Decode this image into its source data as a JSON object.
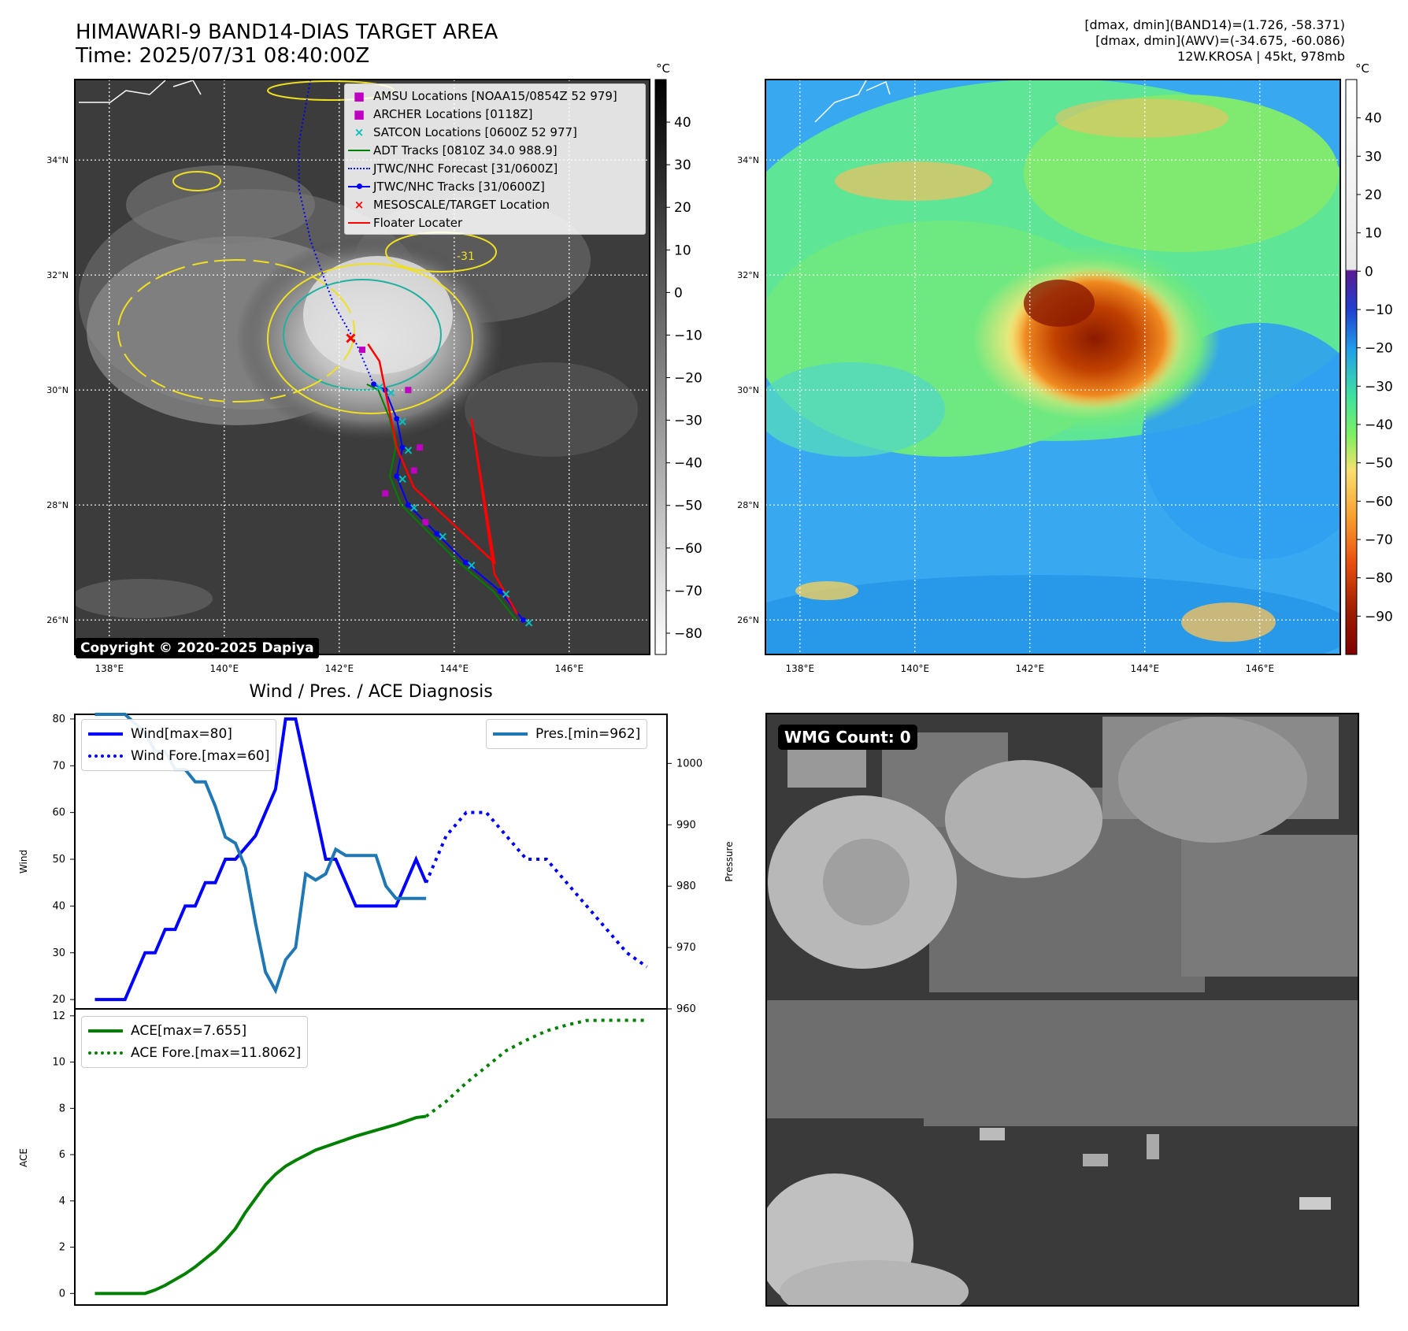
{
  "header": {
    "title_line1": "HIMAWARI-9 BAND14-DIAS TARGET AREA",
    "title_line2": "Time: 2025/07/31 08:40:00Z",
    "info_line1": "[dmax, dmin](BAND14)=(1.726, -58.371)",
    "info_line2": "[dmax, dmin](AWV)=(-34.675, -60.086)",
    "info_line3": "12W.KROSA | 45kt, 978mb"
  },
  "map": {
    "lat_labels": [
      "34°N",
      "32°N",
      "30°N",
      "28°N",
      "26°N"
    ],
    "lat_values": [
      34,
      32,
      30,
      28,
      26
    ],
    "lon_labels": [
      "138°E",
      "140°E",
      "142°E",
      "144°E",
      "146°E"
    ],
    "lon_values": [
      138,
      140,
      142,
      144,
      146
    ],
    "lat_range": [
      25.4,
      35.4
    ],
    "lon_range": [
      137.4,
      147.4
    ],
    "copyright": "Copyright © 2020-2025 Dapiya",
    "legend": [
      {
        "label": "AMSU Locations [NOAA15/0854Z 52 979]",
        "symbol": "■",
        "color": "#c000c0"
      },
      {
        "label": "ARCHER Locations [0118Z]",
        "symbol": "■",
        "color": "#c000c0"
      },
      {
        "label": "SATCON Locations [0600Z 52 977]",
        "symbol": "×",
        "color": "#00c0c0"
      },
      {
        "label": "ADT Tracks [0810Z 34.0 988.9]",
        "symbol": "line",
        "color": "#008000"
      },
      {
        "label": "JTWC/NHC Forecast [31/0600Z]",
        "symbol": "dotted",
        "color": "#0000ff"
      },
      {
        "label": "JTWC/NHC Tracks [31/0600Z]",
        "symbol": "linedot",
        "color": "#0000ff"
      },
      {
        "label": "MESOSCALE/TARGET Location",
        "symbol": "×",
        "color": "#ff0000"
      },
      {
        "label": "Floater Locater",
        "symbol": "line",
        "color": "#ff0000"
      }
    ],
    "contour_label": "-31",
    "colorbar_left": {
      "unit": "°C",
      "ticks": [
        "40",
        "30",
        "20",
        "10",
        "0",
        "−10",
        "−20",
        "−30",
        "−40",
        "−50",
        "−60",
        "−70",
        "−80"
      ],
      "tick_values": [
        40,
        30,
        20,
        10,
        0,
        -10,
        -20,
        -30,
        -40,
        -50,
        -60,
        -70,
        -80
      ],
      "range": [
        -85,
        50
      ]
    },
    "colorbar_right": {
      "unit": "°C",
      "ticks": [
        "40",
        "30",
        "20",
        "10",
        "0",
        "−10",
        "−20",
        "−30",
        "−40",
        "−50",
        "−60",
        "−70",
        "−80",
        "−90"
      ],
      "tick_values": [
        40,
        30,
        20,
        10,
        0,
        -10,
        -20,
        -30,
        -40,
        -50,
        -60,
        -70,
        -80,
        -90
      ],
      "range": [
        -100,
        50
      ]
    },
    "jtwc_track": [
      [
        26,
        145.2
      ],
      [
        26.5,
        144.8
      ],
      [
        27,
        144.2
      ],
      [
        27.5,
        143.7
      ],
      [
        28,
        143.2
      ],
      [
        28.5,
        143
      ],
      [
        29,
        143.1
      ],
      [
        29.5,
        143
      ],
      [
        30,
        142.8
      ],
      [
        30.1,
        142.6
      ]
    ],
    "jtwc_forecast": [
      [
        30.1,
        142.6
      ],
      [
        30.8,
        142.3
      ],
      [
        31.5,
        141.9
      ],
      [
        32.6,
        141.5
      ],
      [
        33.5,
        141.3
      ],
      [
        34.3,
        141.3
      ],
      [
        35.4,
        141.5
      ]
    ],
    "colors": {
      "jtwc": "#0000ff",
      "adt": "#008000",
      "floater": "#ff0000",
      "amsu": "#c000c0",
      "satcon": "#00c0c0",
      "contour_yellow": "#f0e020",
      "contour_teal": "#20b0a0"
    }
  },
  "diagnosis": {
    "title": "Wind / Pres. / ACE Diagnosis",
    "wind_axis_label": "Wind",
    "pressure_axis_label": "Pressure",
    "ace_axis_label": "ACE",
    "wind_ticks": [
      "80",
      "70",
      "60",
      "50",
      "40",
      "30",
      "20"
    ],
    "pressure_ticks": [
      "1000",
      "990",
      "980",
      "970",
      "960"
    ],
    "ace_ticks": [
      "12",
      "10",
      "8",
      "6",
      "4",
      "2",
      "0"
    ],
    "legend_wind": "Wind[max=80]",
    "legend_wind_fore": "Wind Fore.[max=60]",
    "legend_pres": "Pres.[min=962]",
    "legend_ace": "ACE[max=7.655]",
    "legend_ace_fore": "ACE Fore.[max=11.8062]"
  },
  "chart_data": [
    {
      "type": "line",
      "title": "Wind / Pres. / ACE Diagnosis",
      "ylabel": "Wind",
      "ylim": [
        18,
        81
      ],
      "y2label": "Pressure",
      "y2lim": [
        960,
        1008
      ],
      "x": [
        0,
        1,
        2,
        3,
        4,
        5,
        6,
        7,
        8,
        9,
        10,
        11,
        12,
        13,
        14,
        15,
        16,
        17,
        18,
        19,
        20,
        21,
        22,
        23,
        24,
        25,
        26,
        27,
        28,
        29,
        30,
        31,
        32,
        33,
        34,
        35,
        36,
        37,
        38,
        39,
        40,
        41,
        42,
        43,
        44,
        45,
        46,
        47,
        48,
        49,
        50,
        51,
        52,
        53,
        54,
        55
      ],
      "xlim": [
        -2,
        57
      ],
      "series": [
        {
          "name": "Wind[max=80]",
          "color": "#0000ff",
          "style": "solid",
          "axis": "left",
          "x": [
            0,
            3,
            5,
            6,
            7,
            8,
            9,
            10,
            11,
            12,
            13,
            14,
            16,
            18,
            19,
            20,
            21,
            22,
            23,
            24,
            25,
            26,
            28,
            30,
            32,
            33
          ],
          "values": [
            20,
            20,
            30,
            30,
            35,
            35,
            40,
            40,
            45,
            45,
            50,
            50,
            55,
            65,
            80,
            80,
            70,
            60,
            50,
            50,
            45,
            40,
            40,
            40,
            50,
            45
          ]
        },
        {
          "name": "Wind Fore.[max=60]",
          "color": "#0000ff",
          "style": "dotted",
          "axis": "left",
          "x": [
            33,
            35,
            37,
            39,
            41,
            43,
            45,
            47,
            49,
            51,
            53,
            55
          ],
          "values": [
            45,
            55,
            60,
            60,
            55,
            50,
            50,
            45,
            40,
            35,
            30,
            27
          ]
        },
        {
          "name": "Pres.[min=962]",
          "color": "#1f77b4",
          "style": "solid",
          "axis": "right",
          "x": [
            0,
            3,
            5,
            6,
            7,
            8,
            9,
            10,
            11,
            12,
            13,
            14,
            15,
            16,
            17,
            18,
            19,
            20,
            21,
            22,
            23,
            24,
            25,
            26,
            27,
            28,
            29,
            30,
            31,
            32,
            33
          ],
          "values": [
            1008,
            1008,
            1005,
            1002,
            1002,
            999,
            999,
            997,
            997,
            993,
            988,
            987,
            983,
            974,
            966,
            963,
            968,
            970,
            982,
            981,
            982,
            986,
            985,
            985,
            985,
            985,
            980,
            978,
            978,
            978,
            978
          ]
        }
      ]
    },
    {
      "type": "line",
      "ylabel": "ACE",
      "ylim": [
        -0.5,
        12.3
      ],
      "xlim": [
        -2,
        57
      ],
      "series": [
        {
          "name": "ACE[max=7.655]",
          "color": "#008000",
          "style": "solid",
          "x": [
            0,
            3,
            5,
            6,
            7,
            8,
            9,
            10,
            11,
            12,
            13,
            14,
            15,
            16,
            17,
            18,
            19,
            20,
            22,
            24,
            26,
            28,
            30,
            32,
            33
          ],
          "values": [
            0,
            0,
            0,
            0.15,
            0.35,
            0.6,
            0.85,
            1.15,
            1.5,
            1.85,
            2.3,
            2.8,
            3.5,
            4.1,
            4.7,
            5.15,
            5.5,
            5.75,
            6.2,
            6.5,
            6.8,
            7.05,
            7.3,
            7.6,
            7.655
          ]
        },
        {
          "name": "ACE Fore.[max=11.8062]",
          "color": "#008000",
          "style": "dotted",
          "x": [
            33,
            35,
            37,
            39,
            41,
            43,
            45,
            47,
            49,
            51,
            53,
            55
          ],
          "values": [
            7.655,
            8.3,
            9.1,
            9.8,
            10.5,
            10.95,
            11.35,
            11.6,
            11.8,
            11.8062,
            11.8062,
            11.8062
          ]
        }
      ]
    }
  ],
  "wmg": {
    "label": "WMG Count: 0"
  }
}
